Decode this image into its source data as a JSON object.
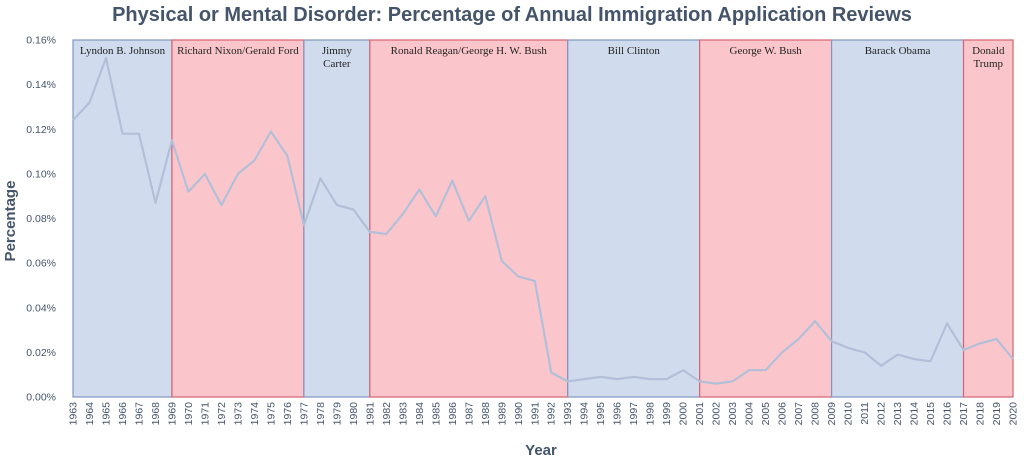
{
  "chart_data": {
    "type": "line",
    "title": "Physical or Mental Disorder: Percentage of Annual Immigration Application Reviews",
    "xlabel": "Year",
    "ylabel": "Percentage",
    "ylim": [
      0,
      0.16
    ],
    "yticks": [
      "0.00%",
      "0.02%",
      "0.04%",
      "0.06%",
      "0.08%",
      "0.10%",
      "0.12%",
      "0.14%",
      "0.16%"
    ],
    "x": [
      1963,
      1964,
      1965,
      1966,
      1967,
      1968,
      1969,
      1970,
      1971,
      1972,
      1973,
      1974,
      1975,
      1976,
      1977,
      1978,
      1979,
      1980,
      1981,
      1982,
      1983,
      1984,
      1985,
      1986,
      1987,
      1988,
      1989,
      1990,
      1991,
      1992,
      1993,
      1994,
      1995,
      1996,
      1997,
      1998,
      1999,
      2000,
      2001,
      2002,
      2003,
      2004,
      2005,
      2006,
      2007,
      2008,
      2009,
      2010,
      2011,
      2012,
      2013,
      2014,
      2015,
      2016,
      2017,
      2018,
      2019,
      2020
    ],
    "series": [
      {
        "values": [
          0.124,
          0.132,
          0.152,
          0.118,
          0.118,
          0.087,
          0.115,
          0.092,
          0.1,
          0.086,
          0.1,
          0.106,
          0.119,
          0.108,
          0.077,
          0.098,
          0.086,
          0.084,
          0.074,
          0.073,
          0.082,
          0.093,
          0.081,
          0.097,
          0.079,
          0.09,
          0.061,
          0.054,
          0.052,
          0.011,
          0.007,
          0.008,
          0.009,
          0.008,
          0.009,
          0.008,
          0.008,
          0.012,
          0.007,
          0.006,
          0.007,
          0.012,
          0.012,
          0.02,
          0.026,
          0.034,
          0.025,
          0.022,
          0.02,
          0.014,
          0.019,
          0.017,
          0.016,
          0.033,
          0.021,
          0.024,
          0.026,
          0.017
        ],
        "color": "#b3bfd8"
      }
    ],
    "eras": [
      {
        "label": [
          "Lyndon B. Johnson"
        ],
        "start": 1963,
        "end": 1969,
        "party": "dem"
      },
      {
        "label": [
          "Richard Nixon/Gerald Ford"
        ],
        "start": 1969,
        "end": 1977,
        "party": "rep"
      },
      {
        "label": [
          "Jimmy",
          "Carter"
        ],
        "start": 1977,
        "end": 1981,
        "party": "dem"
      },
      {
        "label": [
          "Ronald Reagan/George H. W. Bush"
        ],
        "start": 1981,
        "end": 1993,
        "party": "rep"
      },
      {
        "label": [
          "Bill Clinton"
        ],
        "start": 1993,
        "end": 2001,
        "party": "dem"
      },
      {
        "label": [
          "George W. Bush"
        ],
        "start": 2001,
        "end": 2009,
        "party": "rep"
      },
      {
        "label": [
          "Barack Obama"
        ],
        "start": 2009,
        "end": 2017,
        "party": "dem"
      },
      {
        "label": [
          "Donald",
          "Trump"
        ],
        "start": 2017,
        "end": 2020,
        "party": "rep"
      }
    ],
    "colors": {
      "dem_fill": "#d0dcee",
      "dem_border": "#7f96c2",
      "rep_fill": "#fbc6cb",
      "rep_border": "#d9626f",
      "text": "#44546a"
    },
    "grid": false,
    "legend": "none"
  }
}
